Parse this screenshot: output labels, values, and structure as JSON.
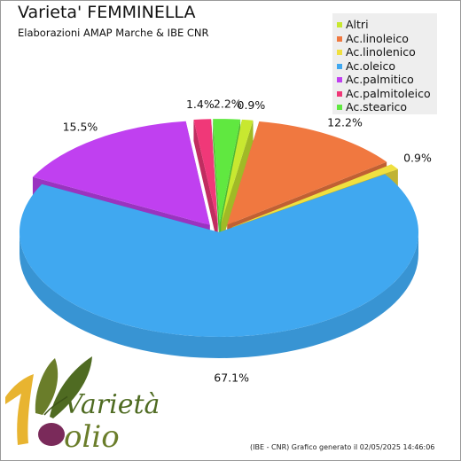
{
  "header": {
    "title": "Varieta' FEMMINELLA",
    "subtitle": "Elaborazioni AMAP Marche & IBE CNR"
  },
  "chart_data": {
    "type": "pie",
    "title": "Varieta' FEMMINELLA",
    "subtitle": "Elaborazioni AMAP Marche & IBE CNR",
    "legend_position": "top-right",
    "slices": [
      {
        "name": "Altri",
        "value": 0.9,
        "label": "0.9%",
        "color": "#c8e830"
      },
      {
        "name": "Ac.linoleico",
        "value": 12.2,
        "label": "12.2%",
        "color": "#f07840"
      },
      {
        "name": "Ac.linolenico",
        "value": 0.9,
        "label": "0.9%",
        "color": "#f0e040"
      },
      {
        "name": "Ac.oleico",
        "value": 67.1,
        "label": "67.1%",
        "color": "#40a8f0"
      },
      {
        "name": "Ac.palmitico",
        "value": 15.5,
        "label": "15.5%",
        "color": "#c040f0"
      },
      {
        "name": "Ac.palmitoleico",
        "value": 1.4,
        "label": "1.4%",
        "color": "#f03878"
      },
      {
        "name": "Ac.stearico",
        "value": 2.2,
        "label": "2.2%",
        "color": "#60e840"
      }
    ]
  },
  "footer": {
    "text": "(IBE - CNR) Grafico generato il 02/05/2025 14:46:06"
  },
  "logo": {
    "text_top": "Varietà",
    "text_bottom": "olio",
    "icon": "olive-leaves-icon"
  }
}
